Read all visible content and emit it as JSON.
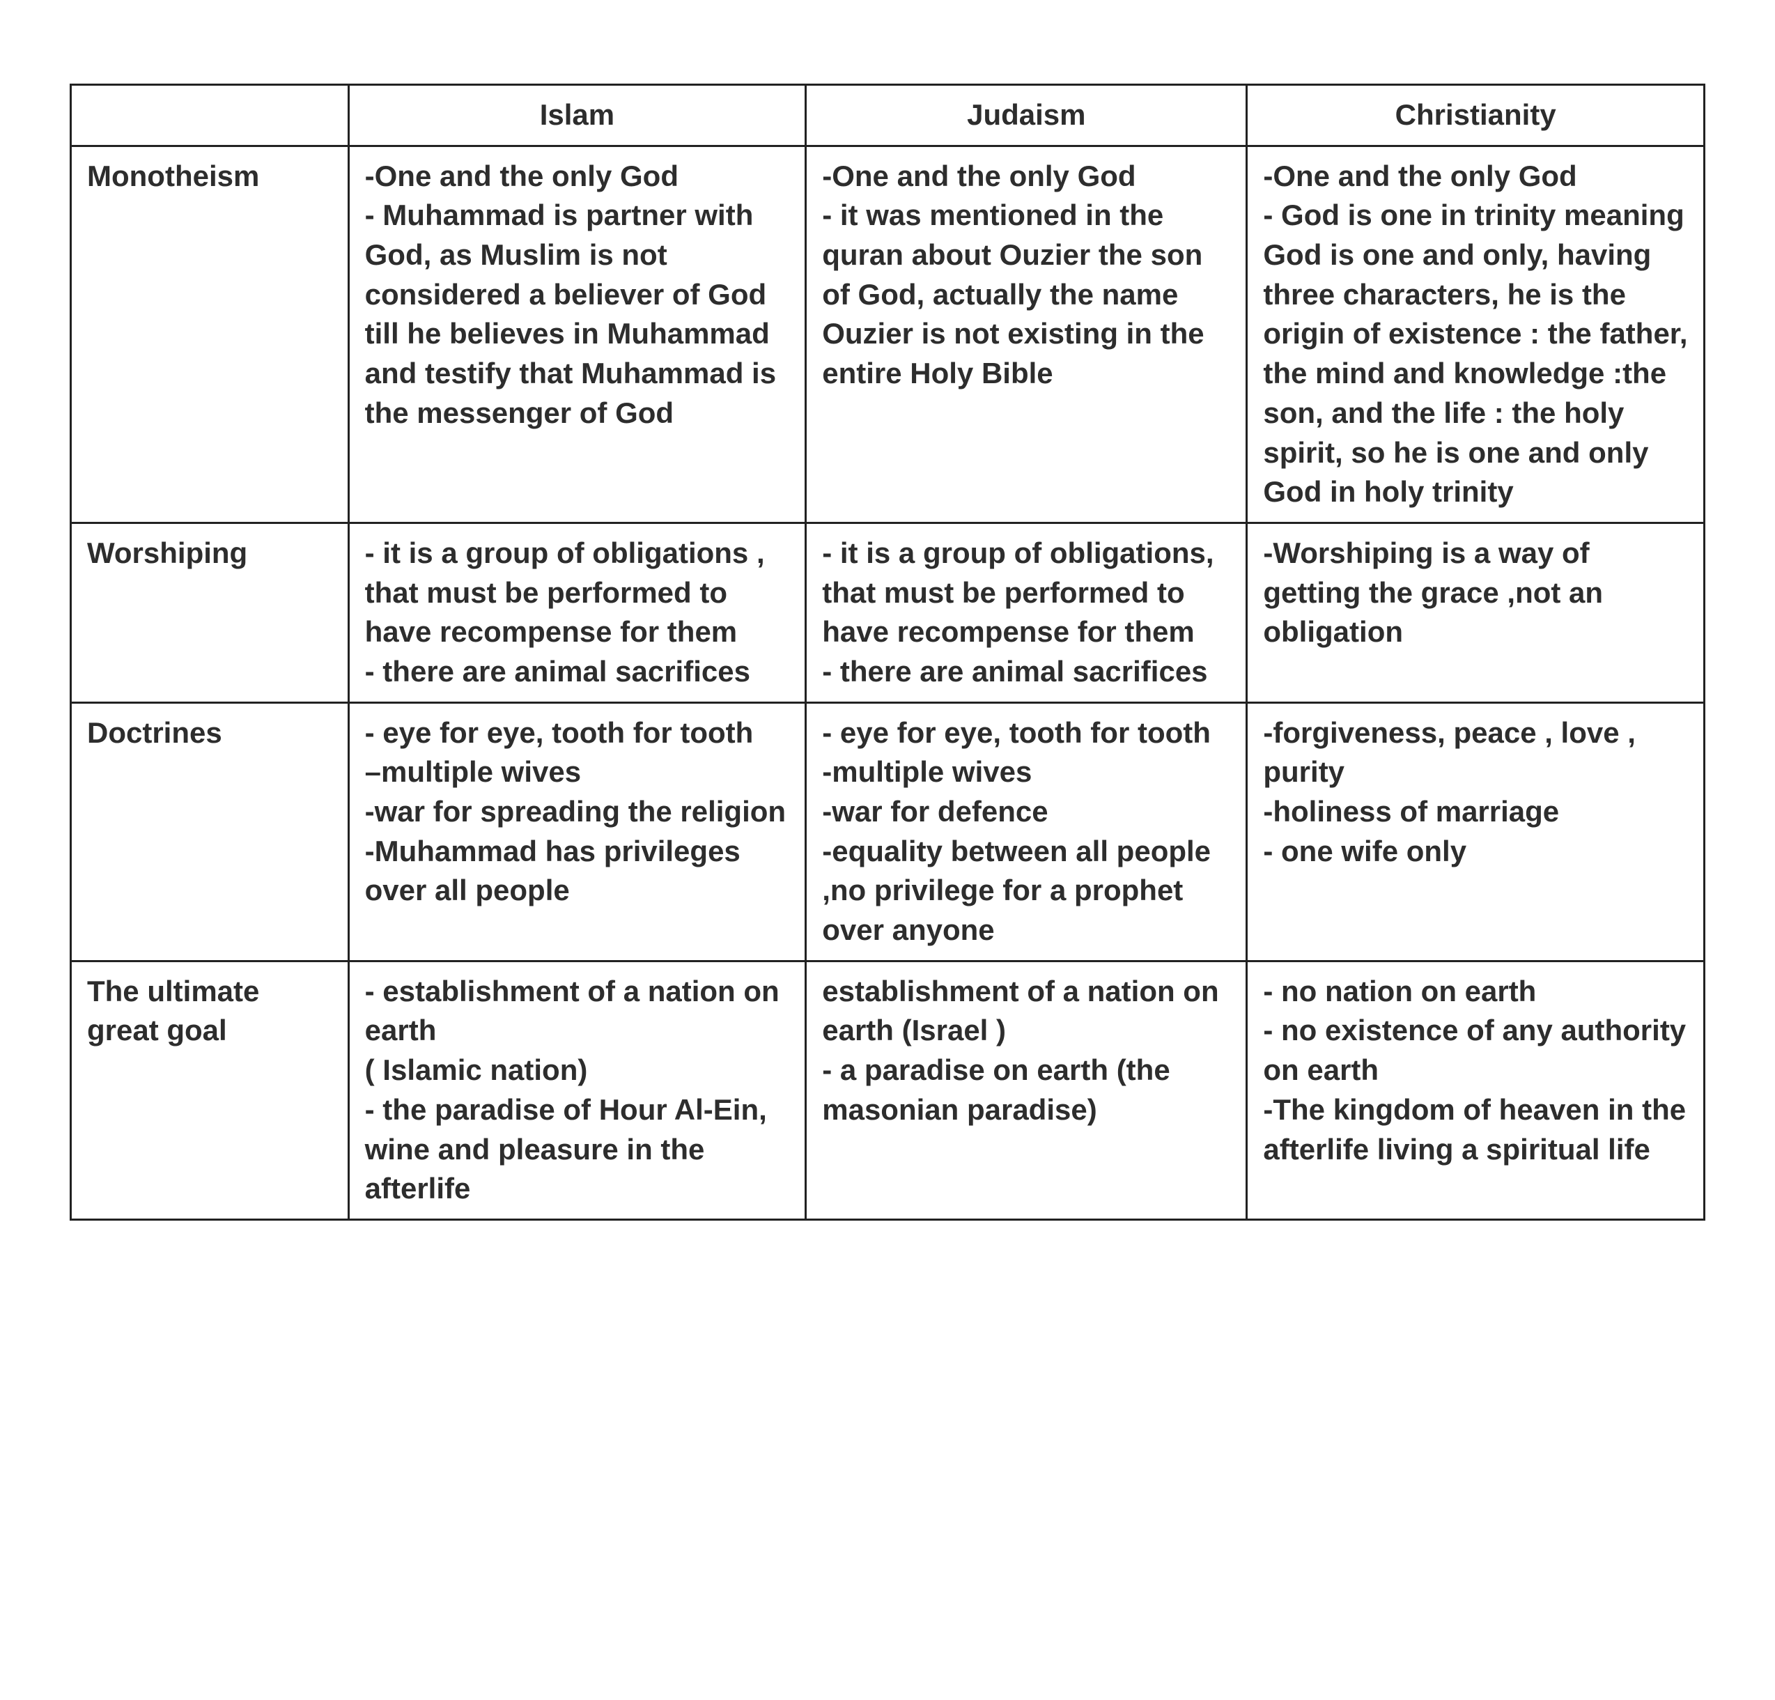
{
  "table": {
    "columns": [
      "",
      "Islam",
      "Judaism",
      "Christianity"
    ],
    "column_widths_pct": [
      17,
      28,
      27,
      28
    ],
    "border_color": "#222222",
    "background_color": "#ffffff",
    "font_family": "Arial",
    "font_size_pt": 32,
    "font_weight": "bold",
    "text_color": "#2d2d2d",
    "header_align": "center",
    "cell_align": "left",
    "rows": [
      {
        "label": "Monotheism",
        "cells": [
          "-One and the only God\n- Muhammad is partner with God, as Muslim is not considered a believer of God till he believes in Muhammad and testify that Muhammad is the messenger of God",
          "-One and the only God\n- it was mentioned in the quran about Ouzier the son of God, actually the name Ouzier is not existing in the entire Holy Bible",
          "-One and the only God\n- God is one in trinity meaning God is one and only, having three characters, he is the origin of existence : the father, the mind and knowledge :the son, and the life : the holy spirit, so he is one and only God in holy trinity"
        ]
      },
      {
        "label": "Worshiping",
        "cells": [
          "- it is a group of obligations , that must be performed to have recompense for them\n- there are animal sacrifices",
          "- it is a group of obligations, that must be performed to have recompense for them\n- there are animal sacrifices",
          "-Worshiping is a way of getting the grace ,not an obligation"
        ]
      },
      {
        "label": "Doctrines",
        "cells": [
          "- eye for eye, tooth for tooth\n–multiple wives\n-war for spreading the religion\n-Muhammad has privileges over all people",
          "- eye for eye, tooth for tooth\n-multiple wives\n-war for defence\n-equality between all people ,no privilege for a prophet over anyone",
          "-forgiveness, peace , love , purity\n-holiness of marriage\n- one wife only"
        ]
      },
      {
        "label": "The ultimate great goal",
        "cells": [
          "- establishment of a nation on earth\n( Islamic nation)\n- the paradise of Hour Al-Ein, wine and pleasure in the afterlife",
          "establishment of a nation on earth (Israel )\n- a paradise on earth (the masonian paradise)",
          "- no nation on earth\n- no existence of any authority on earth\n-The kingdom of heaven in the afterlife living a spiritual life"
        ]
      }
    ]
  }
}
